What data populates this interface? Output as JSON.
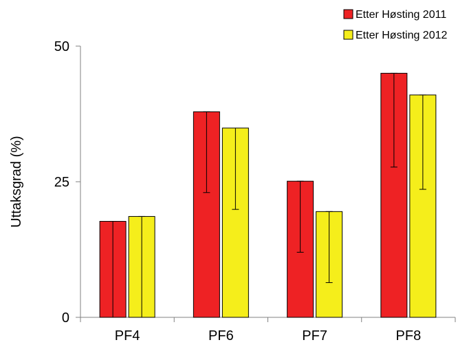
{
  "chart_data": {
    "type": "bar",
    "title": "",
    "xlabel": "",
    "ylabel": "Uttaksgrad  (%)",
    "ylim": [
      0,
      50
    ],
    "yticks": [
      0,
      25,
      50
    ],
    "categories": [
      "PF4",
      "PF6",
      "PF7",
      "PF8"
    ],
    "series": [
      {
        "name": "Etter Høsting 2011",
        "color": "#ee2224",
        "values": [
          17.7,
          37.9,
          25.1,
          45.0
        ],
        "error_low": [
          0,
          23.0,
          12.0,
          27.7
        ],
        "error_high": [
          17.7,
          37.9,
          25.1,
          45.0
        ]
      },
      {
        "name": "Etter Høsting 2012",
        "color": "#f5ee1b",
        "values": [
          18.6,
          34.9,
          19.5,
          41.0
        ],
        "error_low": [
          0,
          19.9,
          6.4,
          23.6
        ],
        "error_high": [
          18.6,
          34.9,
          19.5,
          41.0
        ]
      }
    ],
    "legend_position": "top-right",
    "grid": false
  }
}
